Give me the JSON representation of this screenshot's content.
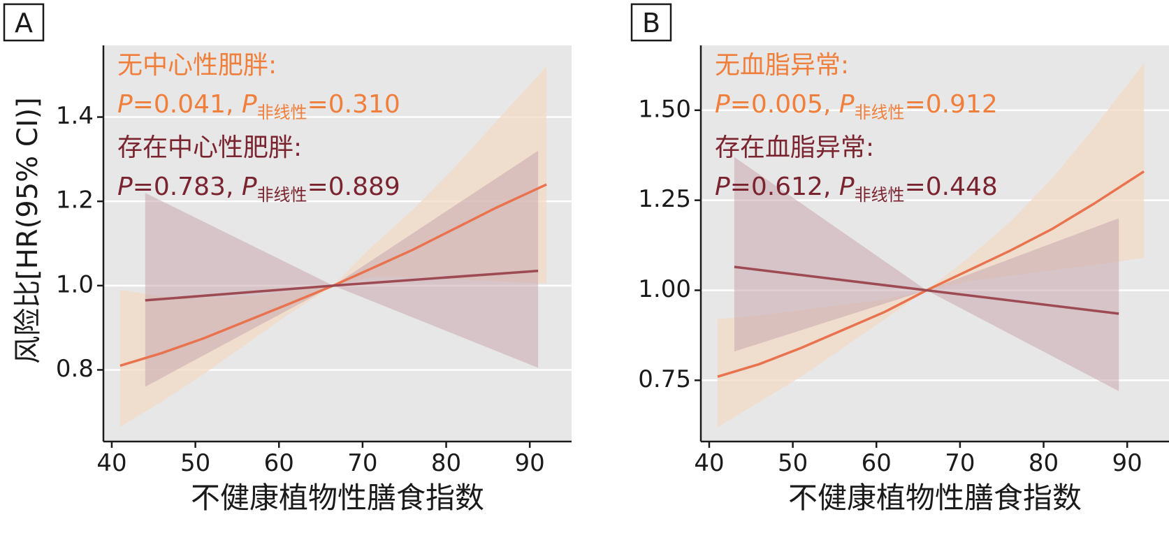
{
  "ylabel": "风险比[HR(95% CI)]",
  "chart_data": [
    {
      "panel_label": "A",
      "type": "line",
      "xlabel": "不健康植物性膳食指数",
      "xlim": [
        39,
        95
      ],
      "ylim": [
        0.63,
        1.57
      ],
      "xticks": [
        40,
        50,
        60,
        70,
        80,
        90
      ],
      "yticks": [
        0.8,
        1.0,
        1.2,
        1.4
      ],
      "ytick_labels": [
        "0.8",
        "1.0",
        "1.2",
        "1.4"
      ],
      "grid": true,
      "annotations": [
        {
          "group": "无中心性肥胖:",
          "p_label": "P",
          "p_value": "=0.041, ",
          "pnl_label": "P",
          "pnl_sub": "非线性",
          "pnl_value": "=0.310",
          "color": "#F07F3C"
        },
        {
          "group": "存在中心性肥胖:",
          "p_label": "P",
          "p_value": "=0.783, ",
          "pnl_label": "P",
          "pnl_sub": "非线性",
          "pnl_value": "=0.889",
          "color": "#7A2430"
        }
      ],
      "series": [
        {
          "x": [
            41,
            46,
            51,
            56,
            61,
            66.5,
            71,
            76,
            81,
            86,
            92
          ],
          "y": [
            0.81,
            0.84,
            0.875,
            0.915,
            0.955,
            1.0,
            1.04,
            1.085,
            1.135,
            1.185,
            1.24
          ],
          "lower": [
            0.665,
            0.725,
            0.79,
            0.86,
            0.93,
            1.0,
            1.02,
            1.02,
            1.015,
            1.01,
            1.005
          ],
          "upper": [
            0.99,
            0.975,
            0.97,
            0.975,
            0.985,
            1.0,
            1.09,
            1.18,
            1.28,
            1.39,
            1.52
          ],
          "color": "#E8734E",
          "band_color": "#F2D9C5"
        },
        {
          "x": [
            44,
            66.5,
            91
          ],
          "y": [
            0.965,
            1.0,
            1.035
          ],
          "lower": [
            0.76,
            1.0,
            0.805
          ],
          "upper": [
            1.22,
            1.0,
            1.32
          ],
          "color": "#9E4A52",
          "band_color": "#C9A8AE"
        }
      ]
    },
    {
      "panel_label": "B",
      "type": "line",
      "xlabel": "不健康植物性膳食指数",
      "xlim": [
        39,
        95
      ],
      "ylim": [
        0.58,
        1.68
      ],
      "xticks": [
        40,
        50,
        60,
        70,
        80,
        90
      ],
      "yticks": [
        0.75,
        1.0,
        1.25,
        1.5
      ],
      "ytick_labels": [
        "0.75",
        "1.00",
        "1.25",
        "1.50"
      ],
      "grid": true,
      "annotations": [
        {
          "group": "无血脂异常:",
          "p_label": "P",
          "p_value": "=0.005, ",
          "pnl_label": "P",
          "pnl_sub": "非线性",
          "pnl_value": "=0.912",
          "color": "#F07F3C"
        },
        {
          "group": "存在血脂异常:",
          "p_label": "P",
          "p_value": "=0.612, ",
          "pnl_label": "P",
          "pnl_sub": "非线性",
          "pnl_value": "=0.448",
          "color": "#7A2430"
        }
      ],
      "series": [
        {
          "x": [
            41,
            46,
            51,
            56,
            61,
            66,
            71,
            76,
            81,
            86,
            92
          ],
          "y": [
            0.76,
            0.795,
            0.84,
            0.89,
            0.94,
            1.0,
            1.055,
            1.11,
            1.17,
            1.24,
            1.33
          ],
          "lower": [
            0.62,
            0.69,
            0.76,
            0.84,
            0.92,
            1.0,
            1.025,
            1.04,
            1.055,
            1.07,
            1.09
          ],
          "upper": [
            0.92,
            0.93,
            0.945,
            0.96,
            0.975,
            1.0,
            1.09,
            1.19,
            1.31,
            1.45,
            1.63
          ],
          "color": "#E8734E",
          "band_color": "#F2D9C5"
        },
        {
          "x": [
            43,
            66,
            89
          ],
          "y": [
            1.065,
            1.0,
            0.935
          ],
          "lower": [
            0.83,
            1.0,
            0.72
          ],
          "upper": [
            1.37,
            1.0,
            1.2
          ],
          "color": "#9E4A52",
          "band_color": "#C9A8AE"
        }
      ]
    }
  ]
}
